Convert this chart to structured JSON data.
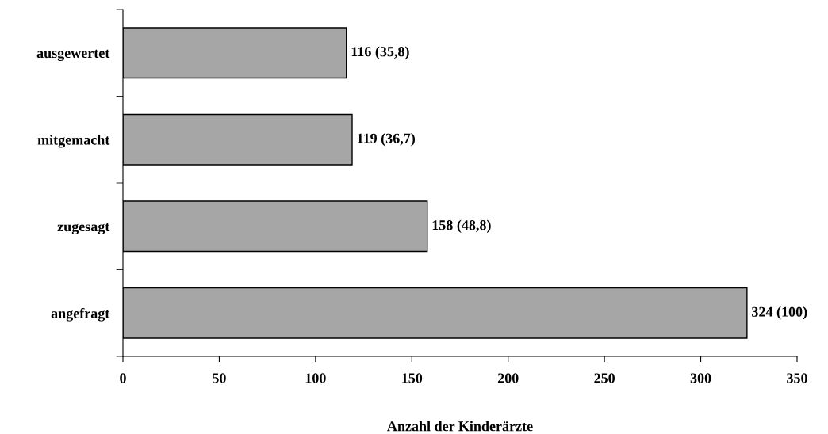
{
  "chart_data": {
    "type": "bar",
    "orientation": "horizontal",
    "categories": [
      "ausgewertet",
      "mitgemacht",
      "zugesagt",
      "angefragt"
    ],
    "values": [
      116,
      119,
      158,
      324
    ],
    "value_labels": [
      "116 (35,8)",
      "119 (36,7)",
      "158 (48,8)",
      "324 (100)"
    ],
    "color": "#a6a6a6",
    "xlabel": "Anzahl der Kinderärzte",
    "xlim": [
      0,
      350
    ],
    "xticks": [
      0,
      50,
      100,
      150,
      200,
      250,
      300,
      350
    ],
    "grid": false,
    "legend": false
  }
}
